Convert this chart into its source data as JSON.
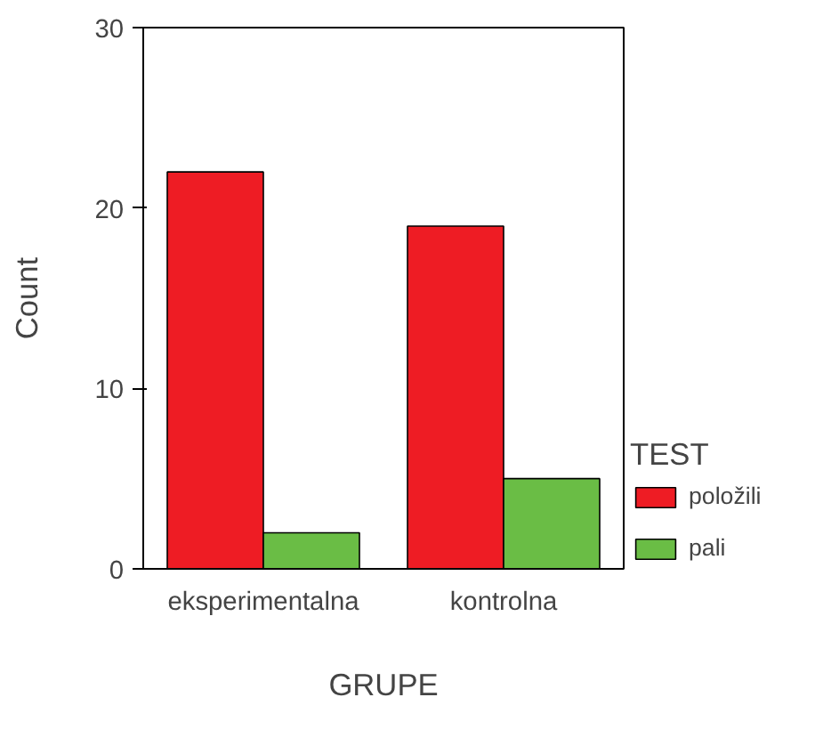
{
  "chart_data": {
    "type": "bar",
    "categories": [
      "eksperimentalna",
      "kontrolna"
    ],
    "xlabel": "GRUPE",
    "ylabel": "Count",
    "legend_title": "TEST",
    "series": [
      {
        "name": "položili",
        "color": "#ee1c24",
        "values": [
          22,
          19
        ]
      },
      {
        "name": "pali",
        "color": "#6abd45",
        "values": [
          2,
          5
        ]
      }
    ],
    "grid": false,
    "ylim": [
      0,
      30
    ],
    "yticks": [
      0,
      10,
      20,
      30
    ],
    "legend": "right"
  }
}
